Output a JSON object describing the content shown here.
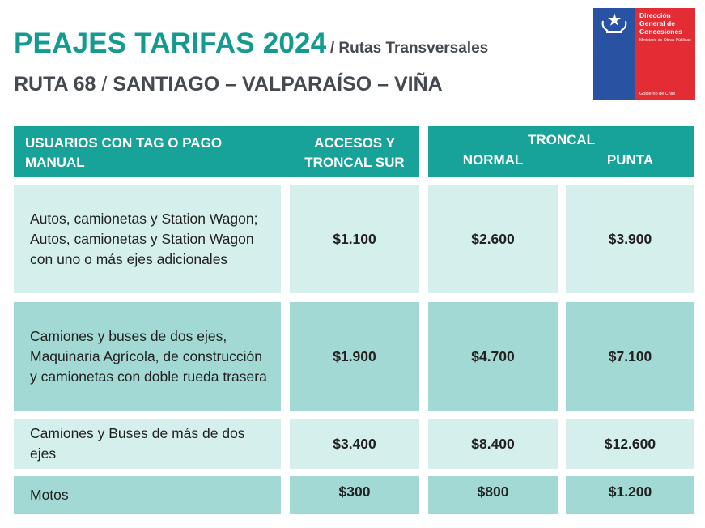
{
  "header": {
    "title": "PEAJES TARIFAS 2024",
    "subtitle": "/ Rutas Transversales",
    "route_prefix": "RUTA 68",
    "route_sep": "/",
    "route_rest": "SANTIAGO – VALPARAÍSO – VIÑA"
  },
  "logo": {
    "line1": "Dirección General de Concesiones",
    "line2": "Ministerio de Obras Públicas",
    "footer": "Gobierno de Chile",
    "colors": {
      "blue": "#2a52a3",
      "red": "#e32c33"
    },
    "icon": "coat-of-arms-icon"
  },
  "table": {
    "col_users": "USUARIOS CON TAG O PAGO MANUAL",
    "col_access": "ACCESOS Y TRONCAL SUR",
    "col_troncal": "TRONCAL",
    "col_normal": "NORMAL",
    "col_punta": "PUNTA",
    "rows": [
      {
        "desc": "Autos, camionetas y Station Wagon; Autos, camionetas y Station Wagon con uno o más ejes adicionales",
        "access": "$1.100",
        "normal": "$2.600",
        "punta": "$3.900"
      },
      {
        "desc": "Camiones y buses de dos ejes, Maquinaria Agrícola, de construcción y camionetas con doble rueda trasera",
        "access": "$1.900",
        "normal": "$4.700",
        "punta": "$7.100"
      },
      {
        "desc": "Camiones y Buses de más de dos ejes",
        "access": "$3.400",
        "normal": "$8.400",
        "punta": "$12.600"
      },
      {
        "desc": "Motos",
        "access": "$300",
        "normal": "$800",
        "punta": "$1.200"
      }
    ],
    "colors": {
      "header": "#17a39a",
      "row_light": "#d5efec",
      "row_dark": "#a2d9d4"
    }
  }
}
